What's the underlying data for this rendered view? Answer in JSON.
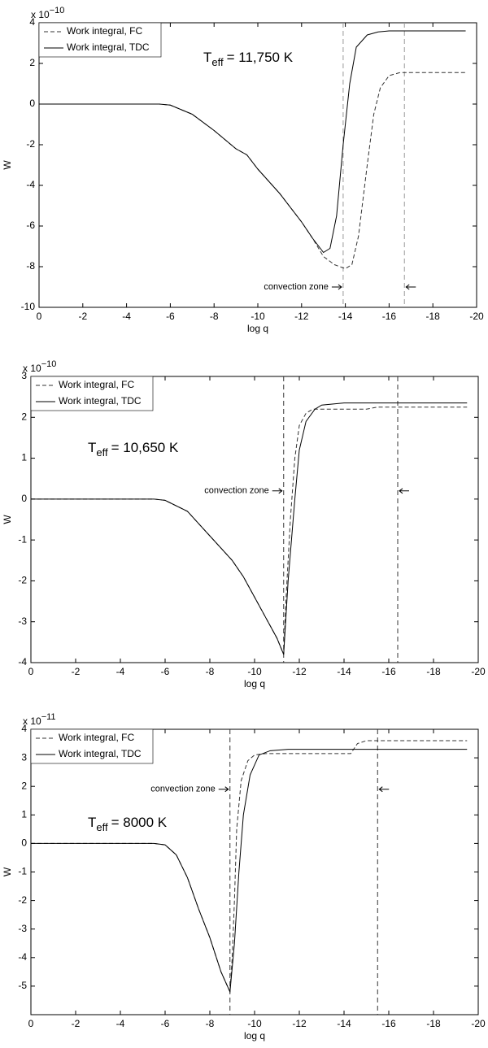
{
  "chart_data": [
    {
      "type": "line",
      "y_multiplier": "x 10",
      "y_exponent": "−10",
      "xlabel": "log q",
      "ylabel": "W",
      "xlim": [
        0,
        -20
      ],
      "xticks": [
        0,
        -2,
        -4,
        -6,
        -8,
        -10,
        -12,
        -14,
        -16,
        -18,
        -20
      ],
      "ylim": [
        -10,
        4
      ],
      "yticks": [
        4,
        2,
        0,
        -2,
        -4,
        -6,
        -8,
        -10
      ],
      "annotation": {
        "symbol": "T",
        "subscript": "eff",
        "text": "= 11,750 K"
      },
      "convection_label": "convection zone",
      "convection_zone": [
        -13.9,
        -16.7
      ],
      "convection_color": "#999",
      "series": [
        {
          "name": "Work integral, FC",
          "color": "#333",
          "dash": true,
          "x": [
            0,
            -5.5,
            -6,
            -7,
            -8,
            -9,
            -9.5,
            -10,
            -11,
            -12,
            -12.5,
            -13,
            -13.5,
            -14,
            -14.3,
            -14.6,
            -15,
            -15.3,
            -15.6,
            -16,
            -16.5,
            -19.5
          ],
          "values": [
            0,
            0,
            -0.05,
            -0.5,
            -1.3,
            -2.2,
            -2.5,
            -3.2,
            -4.4,
            -5.8,
            -6.6,
            -7.5,
            -7.9,
            -8.1,
            -7.9,
            -6.5,
            -3,
            -0.5,
            0.8,
            1.4,
            1.55,
            1.55
          ]
        },
        {
          "name": "Work integral, TDC",
          "color": "#000",
          "dash": false,
          "x": [
            0,
            -5.5,
            -6,
            -7,
            -8,
            -9,
            -9.5,
            -10,
            -11,
            -12,
            -12.5,
            -13,
            -13.3,
            -13.6,
            -13.9,
            -14.2,
            -14.5,
            -15,
            -15.5,
            -16,
            -19.5
          ],
          "values": [
            0,
            0,
            -0.05,
            -0.5,
            -1.3,
            -2.2,
            -2.5,
            -3.2,
            -4.4,
            -5.8,
            -6.6,
            -7.3,
            -7.1,
            -5.5,
            -2,
            1,
            2.8,
            3.4,
            3.55,
            3.6,
            3.6
          ]
        }
      ]
    },
    {
      "type": "line",
      "y_multiplier": "x 10",
      "y_exponent": "−10",
      "xlabel": "log q",
      "ylabel": "W",
      "xlim": [
        0,
        -20
      ],
      "xticks": [
        0,
        -2,
        -4,
        -6,
        -8,
        -10,
        -12,
        -14,
        -16,
        -18,
        -20
      ],
      "ylim": [
        -4,
        3
      ],
      "yticks": [
        3,
        2,
        1,
        0,
        -1,
        -2,
        -3,
        -4
      ],
      "annotation": {
        "symbol": "T",
        "subscript": "eff",
        "text": "= 10,650 K"
      },
      "convection_label": "convection zone",
      "convection_zone": [
        -11.3,
        -16.4
      ],
      "convection_color": "#333",
      "series": [
        {
          "name": "Work integral, FC",
          "color": "#333",
          "dash": true,
          "x": [
            0,
            -5.5,
            -6,
            -7,
            -8,
            -9,
            -9.5,
            -10,
            -10.5,
            -11,
            -11.3,
            -11.4,
            -11.6,
            -11.8,
            -12,
            -12.3,
            -12.6,
            -15,
            -15.5,
            -19.5
          ],
          "values": [
            0,
            0,
            -0.03,
            -0.3,
            -0.9,
            -1.5,
            -1.9,
            -2.4,
            -2.9,
            -3.4,
            -3.8,
            -2.5,
            -0.5,
            1,
            1.8,
            2.1,
            2.2,
            2.2,
            2.25,
            2.25
          ]
        },
        {
          "name": "Work integral, TDC",
          "color": "#000",
          "dash": false,
          "x": [
            0,
            -5.5,
            -6,
            -7,
            -8,
            -9,
            -9.5,
            -10,
            -10.5,
            -11,
            -11.3,
            -11.5,
            -11.8,
            -12,
            -12.3,
            -12.7,
            -13,
            -14,
            -19.5
          ],
          "values": [
            0,
            0,
            -0.03,
            -0.3,
            -0.9,
            -1.5,
            -1.9,
            -2.4,
            -2.9,
            -3.4,
            -3.8,
            -2,
            0,
            1.2,
            1.9,
            2.2,
            2.3,
            2.35,
            2.35
          ]
        }
      ]
    },
    {
      "type": "line",
      "y_multiplier": "x 10",
      "y_exponent": "−11",
      "xlabel": "log q",
      "ylabel": "W",
      "xlim": [
        0,
        -20
      ],
      "xticks": [
        0,
        -2,
        -4,
        -6,
        -8,
        -10,
        -12,
        -14,
        -16,
        -18,
        -20
      ],
      "ylim": [
        -6,
        4
      ],
      "yticks": [
        4,
        3,
        2,
        1,
        0,
        -1,
        -2,
        -3,
        -4,
        -5
      ],
      "annotation": {
        "symbol": "T",
        "subscript": "eff",
        "text": "= 8000 K"
      },
      "convection_label": "convection zone",
      "convection_zone": [
        -8.9,
        -15.5
      ],
      "convection_color": "#333",
      "series": [
        {
          "name": "Work integral, FC",
          "color": "#333",
          "dash": true,
          "x": [
            0,
            -5.5,
            -6,
            -6.5,
            -7,
            -7.5,
            -8,
            -8.5,
            -8.9,
            -9,
            -9.1,
            -9.2,
            -9.4,
            -9.7,
            -10,
            -10.5,
            -14.3,
            -14.6,
            -15,
            -19.5
          ],
          "values": [
            0,
            0,
            -0.05,
            -0.4,
            -1.2,
            -2.3,
            -3.3,
            -4.5,
            -5.2,
            -4,
            -2,
            0.5,
            2.2,
            2.9,
            3.1,
            3.15,
            3.15,
            3.5,
            3.6,
            3.6
          ]
        },
        {
          "name": "Work integral, TDC",
          "color": "#000",
          "dash": false,
          "x": [
            0,
            -5.5,
            -6,
            -6.5,
            -7,
            -7.5,
            -8,
            -8.5,
            -8.9,
            -9.1,
            -9.3,
            -9.5,
            -9.8,
            -10.2,
            -10.7,
            -11.5,
            -19.5
          ],
          "values": [
            0,
            0,
            -0.05,
            -0.4,
            -1.2,
            -2.3,
            -3.3,
            -4.5,
            -5.2,
            -3.5,
            -1,
            1,
            2.4,
            3.1,
            3.25,
            3.3,
            3.3
          ]
        }
      ]
    }
  ]
}
